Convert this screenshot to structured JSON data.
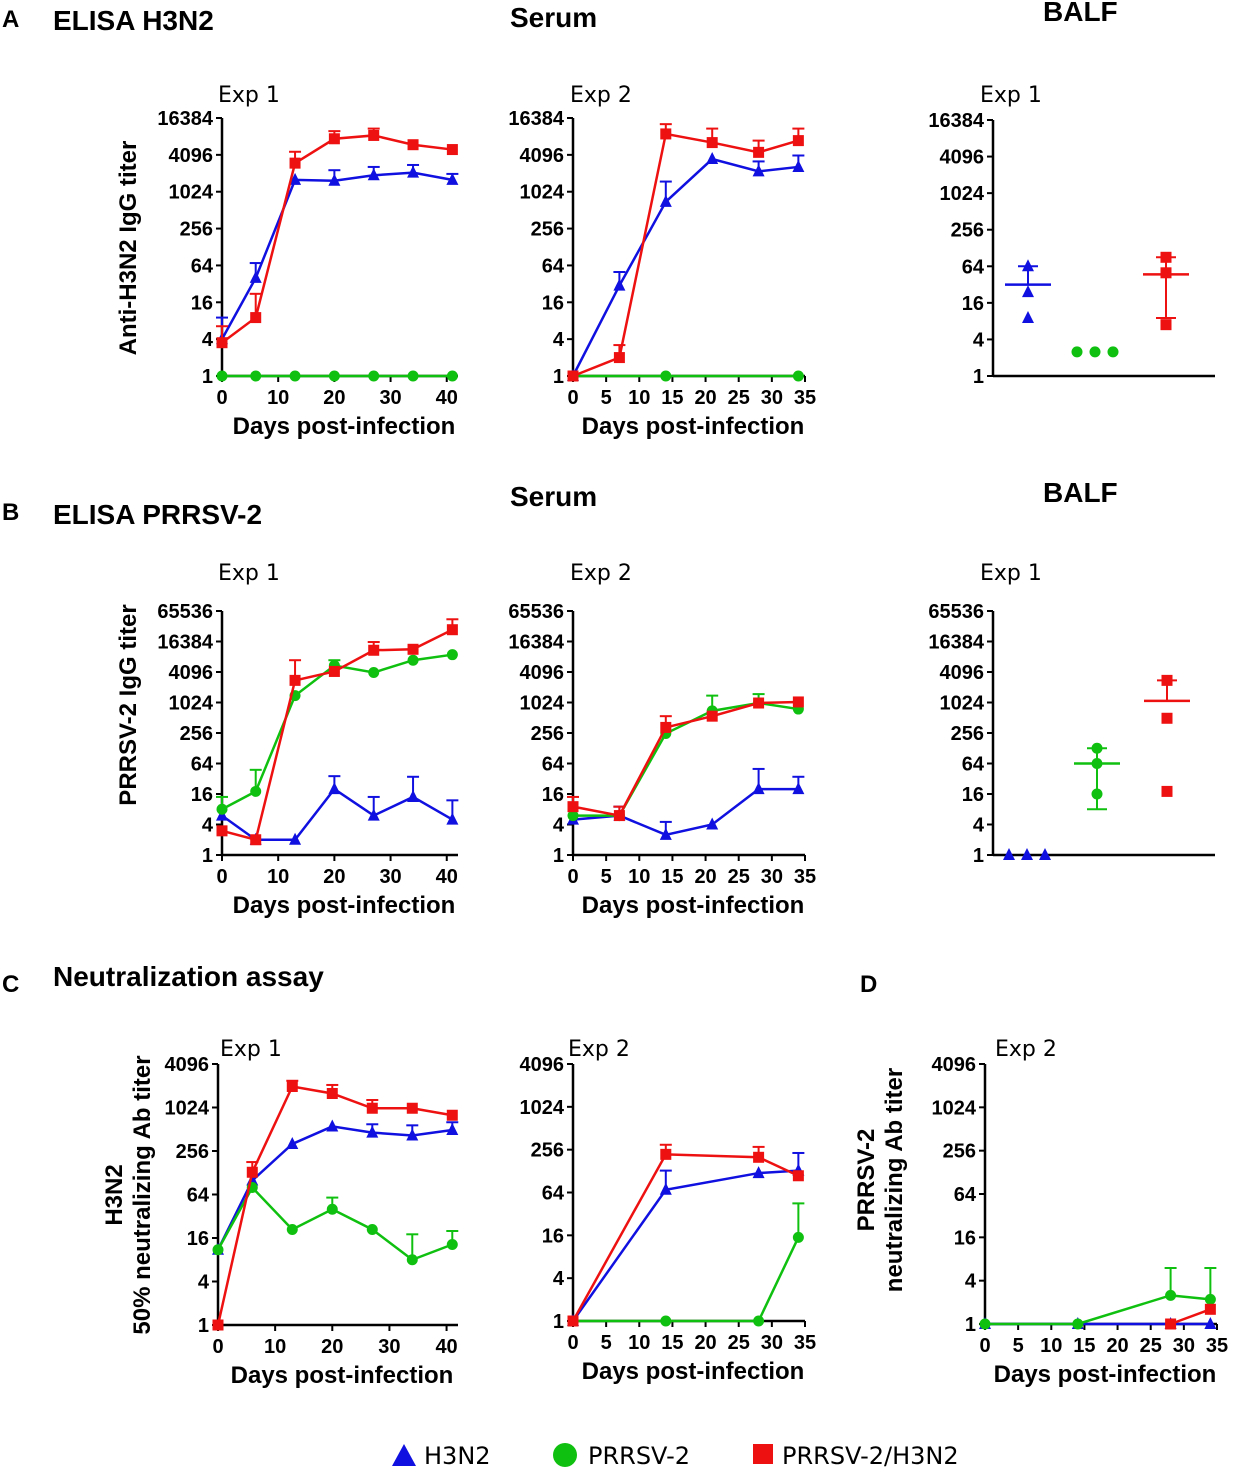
{
  "labels": {
    "A": "A",
    "B": "B",
    "C": "C",
    "D": "D",
    "elisa_h3n2": "ELISA H3N2",
    "elisa_prrsv": "ELISA PRRSV-2",
    "neut": "Neutralization assay",
    "serum": "Serum",
    "balf": "BALF",
    "xlabel": "Days post-infection",
    "ylabel_a": "Anti-H3N2 IgG titer",
    "ylabel_b": "PRRSV-2 IgG titer",
    "ylabel_c1": "H3N2",
    "ylabel_c2": "50% neutralizing Ab titer",
    "ylabel_d1": "PRRSV-2",
    "ylabel_d2": "neutralizing Ab titer"
  },
  "legend": [
    {
      "name": "H3N2",
      "color": "#1010e0",
      "marker": "triangle"
    },
    {
      "name": "PRRSV-2",
      "color": "#10c010",
      "marker": "circle"
    },
    {
      "name": "PRRSV-2/H3N2",
      "color": "#ee1111",
      "marker": "square"
    }
  ],
  "chart_data": [
    {
      "id": "A-exp1",
      "type": "line",
      "title": "Exp 1",
      "panel": "A",
      "ylabel": "Anti-H3N2 IgG titer",
      "xlabel": "Days post-infection",
      "yscale": "log2",
      "ylim": [
        1,
        16384
      ],
      "yticks": [
        1,
        4,
        16,
        64,
        256,
        1024,
        4096,
        16384
      ],
      "xlim": [
        0,
        42
      ],
      "xticks": [
        0,
        10,
        20,
        30,
        40
      ],
      "series": [
        {
          "name": "H3N2",
          "x": [
            0,
            6,
            13,
            20,
            27,
            34,
            41
          ],
          "values": [
            4,
            40,
            1600,
            1550,
            1900,
            2100,
            1600
          ],
          "err": [
            9,
            70,
            null,
            2300,
            2600,
            2800,
            2000
          ]
        },
        {
          "name": "PRRSV-2",
          "x": [
            0,
            6,
            13,
            20,
            27,
            34,
            41
          ],
          "values": [
            1,
            1,
            1,
            1,
            1,
            1,
            1
          ],
          "err": [
            null,
            null,
            null,
            null,
            null,
            null,
            null
          ]
        },
        {
          "name": "PRRSV-2/H3N2",
          "x": [
            0,
            6,
            13,
            20,
            27,
            34,
            41
          ],
          "values": [
            3.5,
            9,
            3000,
            7500,
            8500,
            6000,
            5000
          ],
          "err": [
            6.5,
            22,
            4600,
            10000,
            11000,
            null,
            null
          ]
        }
      ]
    },
    {
      "id": "A-exp2",
      "type": "line",
      "title": "Exp 2",
      "panel": "A",
      "xlabel": "Days post-infection",
      "yscale": "log2",
      "ylim": [
        1,
        16384
      ],
      "yticks": [
        1,
        4,
        16,
        64,
        256,
        1024,
        4096,
        16384
      ],
      "xlim": [
        0,
        35
      ],
      "xticks": [
        0,
        5,
        10,
        15,
        20,
        25,
        30,
        35
      ],
      "series": [
        {
          "name": "H3N2",
          "x": [
            0,
            7,
            14,
            21,
            28,
            34
          ],
          "values": [
            1,
            30,
            700,
            3500,
            2200,
            2600
          ],
          "err": [
            null,
            50,
            1500,
            null,
            3200,
            4000
          ]
        },
        {
          "name": "PRRSV-2",
          "x": [
            0,
            14,
            34
          ],
          "values": [
            1,
            1,
            1
          ],
          "err": [
            null,
            null,
            null
          ]
        },
        {
          "name": "PRRSV-2/H3N2",
          "x": [
            0,
            7,
            14,
            21,
            28,
            34
          ],
          "values": [
            1,
            2,
            9000,
            6500,
            4500,
            7000
          ],
          "err": [
            null,
            3.2,
            13000,
            11000,
            7000,
            11000
          ]
        }
      ]
    },
    {
      "id": "A-balf",
      "type": "scatter",
      "title": "Exp 1",
      "panel": "A BALF",
      "yscale": "log2",
      "ylim": [
        1,
        16384
      ],
      "yticks": [
        1,
        4,
        16,
        64,
        256,
        1024,
        4096,
        16384
      ],
      "groups": [
        {
          "name": "H3N2",
          "points": [
            64,
            24,
            9
          ],
          "mean": 32,
          "upper": 64,
          "lower": null
        },
        {
          "name": "PRRSV-2",
          "points": [
            2.5,
            2.5,
            2.5
          ],
          "mean": null,
          "upper": null,
          "lower": null
        },
        {
          "name": "PRRSV-2/H3N2",
          "points": [
            90,
            50,
            7
          ],
          "mean": 47,
          "upper": 90,
          "lower": 9
        }
      ]
    },
    {
      "id": "B-exp1",
      "type": "line",
      "title": "Exp 1",
      "panel": "B",
      "ylabel": "PRRSV-2 IgG titer",
      "xlabel": "Days post-infection",
      "yscale": "log2",
      "ylim": [
        1,
        65536
      ],
      "yticks": [
        1,
        4,
        16,
        64,
        256,
        1024,
        4096,
        16384,
        65536
      ],
      "xlim": [
        0,
        42
      ],
      "xticks": [
        0,
        10,
        20,
        30,
        40
      ],
      "series": [
        {
          "name": "H3N2",
          "x": [
            0,
            6,
            13,
            20,
            27,
            34,
            41
          ],
          "values": [
            6,
            2,
            2,
            20,
            6,
            14,
            5
          ],
          "err": [
            null,
            null,
            null,
            36,
            14,
            35,
            12
          ]
        },
        {
          "name": "PRRSV-2",
          "x": [
            0,
            6,
            13,
            20,
            27,
            34,
            41
          ],
          "values": [
            8,
            18,
            1400,
            5500,
            4000,
            7000,
            9000
          ],
          "err": [
            14,
            48,
            null,
            7000,
            null,
            null,
            null
          ]
        },
        {
          "name": "PRRSV-2/H3N2",
          "x": [
            0,
            6,
            13,
            20,
            27,
            34,
            41
          ],
          "values": [
            3,
            2,
            2800,
            4200,
            11000,
            11500,
            28000
          ],
          "err": [
            null,
            null,
            7000,
            null,
            16000,
            null,
            45000
          ]
        }
      ]
    },
    {
      "id": "B-exp2",
      "type": "line",
      "title": "Exp 2",
      "panel": "B",
      "xlabel": "Days post-infection",
      "yscale": "log2",
      "ylim": [
        1,
        65536
      ],
      "yticks": [
        1,
        4,
        16,
        64,
        256,
        1024,
        4096,
        16384,
        65536
      ],
      "xlim": [
        0,
        35
      ],
      "xticks": [
        0,
        5,
        10,
        15,
        20,
        25,
        30,
        35
      ],
      "series": [
        {
          "name": "H3N2",
          "x": [
            0,
            7,
            14,
            21,
            28,
            34
          ],
          "values": [
            5,
            6,
            2.5,
            4,
            20,
            20
          ],
          "err": [
            null,
            9,
            4.5,
            null,
            50,
            35
          ]
        },
        {
          "name": "PRRSV-2",
          "x": [
            0,
            7,
            14,
            21,
            28,
            34
          ],
          "values": [
            6,
            6,
            250,
            700,
            1000,
            760
          ],
          "err": [
            null,
            null,
            null,
            1400,
            1500,
            null
          ]
        },
        {
          "name": "PRRSV-2/H3N2",
          "x": [
            0,
            7,
            14,
            21,
            28,
            34
          ],
          "values": [
            9,
            6,
            330,
            550,
            1000,
            1050
          ],
          "err": [
            14,
            9,
            550,
            null,
            null,
            null
          ]
        }
      ]
    },
    {
      "id": "B-balf",
      "type": "scatter",
      "title": "Exp 1",
      "panel": "B BALF",
      "yscale": "log2",
      "ylim": [
        1,
        65536
      ],
      "yticks": [
        1,
        4,
        16,
        64,
        256,
        1024,
        4096,
        16384,
        65536
      ],
      "groups": [
        {
          "name": "H3N2",
          "points": [
            1,
            1,
            1
          ],
          "mean": null,
          "upper": null,
          "lower": null
        },
        {
          "name": "PRRSV-2",
          "points": [
            128,
            64,
            16
          ],
          "mean": 64,
          "upper": 128,
          "lower": 8
        },
        {
          "name": "PRRSV-2/H3N2",
          "points": [
            2800,
            500,
            18
          ],
          "mean": 1100,
          "upper": 2800,
          "lower": null
        }
      ]
    },
    {
      "id": "C-exp1",
      "type": "line",
      "title": "Exp 1",
      "panel": "C",
      "ylabel": "H3N2 50% neutralizing Ab titer",
      "xlabel": "Days post-infection",
      "yscale": "log2",
      "ylim": [
        1,
        4096
      ],
      "yticks": [
        1,
        4,
        16,
        64,
        256,
        1024,
        4096
      ],
      "xlim": [
        0,
        42
      ],
      "xticks": [
        0,
        10,
        20,
        30,
        40
      ],
      "series": [
        {
          "name": "H3N2",
          "x": [
            0,
            6,
            13,
            20,
            27,
            34,
            41
          ],
          "values": [
            11,
            100,
            320,
            560,
            460,
            420,
            500
          ],
          "err": [
            null,
            null,
            null,
            null,
            600,
            580,
            640
          ]
        },
        {
          "name": "PRRSV-2",
          "x": [
            0,
            6,
            13,
            20,
            27,
            34,
            41
          ],
          "values": [
            11,
            80,
            21,
            40,
            21,
            8,
            13
          ],
          "err": [
            null,
            null,
            null,
            58,
            null,
            18,
            20
          ]
        },
        {
          "name": "PRRSV-2/H3N2",
          "x": [
            0,
            6,
            13,
            20,
            27,
            34,
            41
          ],
          "values": [
            1,
            130,
            2000,
            1600,
            1000,
            1000,
            800
          ],
          "err": [
            null,
            180,
            2400,
            2100,
            1300,
            null,
            null
          ]
        }
      ]
    },
    {
      "id": "C-exp2",
      "type": "line",
      "title": "Exp 2",
      "panel": "C",
      "xlabel": "Days post-infection",
      "yscale": "log2",
      "ylim": [
        1,
        4096
      ],
      "yticks": [
        1,
        4,
        16,
        64,
        256,
        1024,
        4096
      ],
      "xlim": [
        0,
        35
      ],
      "xticks": [
        0,
        5,
        10,
        15,
        20,
        25,
        30,
        35
      ],
      "series": [
        {
          "name": "H3N2",
          "x": [
            0,
            14,
            28,
            34
          ],
          "values": [
            1,
            70,
            120,
            130
          ],
          "err": [
            null,
            130,
            null,
            230
          ]
        },
        {
          "name": "PRRSV-2",
          "x": [
            0,
            14,
            28,
            34
          ],
          "values": [
            1,
            1,
            1,
            15
          ],
          "err": [
            null,
            null,
            null,
            45
          ]
        },
        {
          "name": "PRRSV-2/H3N2",
          "x": [
            0,
            14,
            28,
            34
          ],
          "values": [
            1,
            220,
            200,
            110
          ],
          "err": [
            null,
            300,
            280,
            null
          ]
        }
      ]
    },
    {
      "id": "D-exp2",
      "type": "line",
      "title": "Exp 2",
      "panel": "D",
      "ylabel": "PRRSV-2 neutralizing Ab titer",
      "xlabel": "Days post-infection",
      "yscale": "log2",
      "ylim": [
        1,
        4096
      ],
      "yticks": [
        1,
        4,
        16,
        64,
        256,
        1024,
        4096
      ],
      "xlim": [
        0,
        35
      ],
      "xticks": [
        0,
        5,
        10,
        15,
        20,
        25,
        30,
        35
      ],
      "series": [
        {
          "name": "H3N2",
          "x": [
            0,
            14,
            28,
            34
          ],
          "values": [
            1,
            1,
            1,
            1
          ],
          "err": [
            null,
            null,
            null,
            null
          ]
        },
        {
          "name": "PRRSV-2",
          "x": [
            0,
            14,
            28,
            34
          ],
          "values": [
            1,
            1,
            2.5,
            2.2
          ],
          "err": [
            null,
            null,
            6,
            6
          ]
        },
        {
          "name": "PRRSV-2/H3N2",
          "x": [
            28,
            34
          ],
          "values": [
            1,
            1.6
          ],
          "err": [
            null,
            null
          ]
        }
      ]
    }
  ]
}
